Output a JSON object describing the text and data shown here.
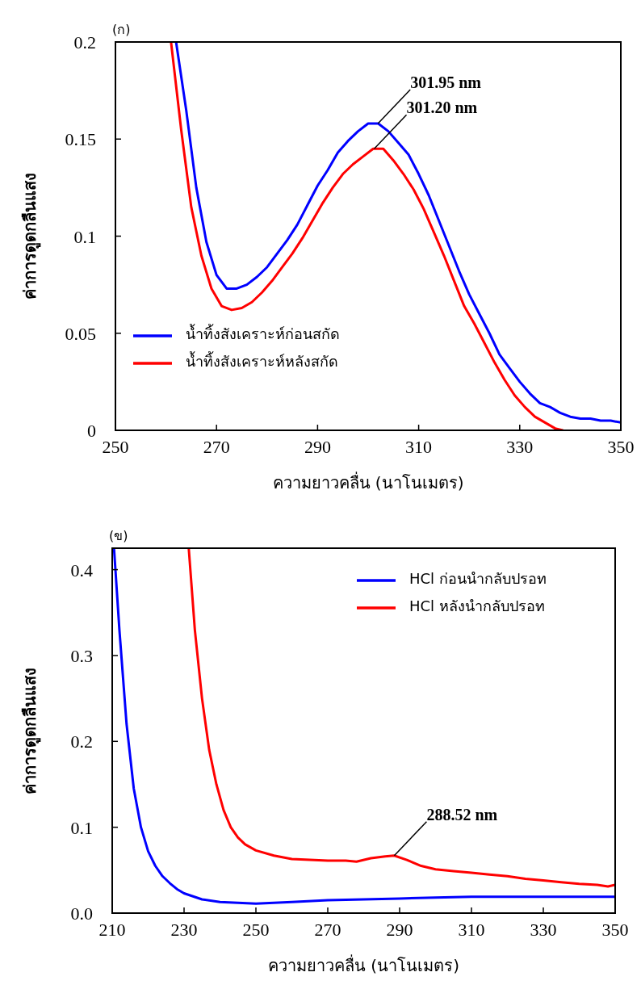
{
  "chart_data": [
    {
      "type": "line",
      "title": "(ก)",
      "xlabel": "ความยาวคลื่น (นาโนเมตร)",
      "ylabel": "ค่าการดูดกลืนแสง",
      "xlim": [
        250,
        350
      ],
      "ylim": [
        0,
        0.2
      ],
      "xticks": [
        250,
        270,
        290,
        310,
        330,
        350
      ],
      "yticks": [
        0,
        0.05,
        0.1,
        0.15,
        0.2
      ],
      "grid": false,
      "legend": "bottom left",
      "series": [
        {
          "name": "น้ำทิ้งสังเคราะห์ก่อนสกัด",
          "color": "#0000ff",
          "x": [
            262,
            264,
            266,
            268,
            270,
            272,
            274,
            276,
            278,
            280,
            282,
            284,
            286,
            288,
            290,
            292,
            294,
            296,
            298,
            300,
            302,
            304,
            306,
            308,
            310,
            312,
            314,
            316,
            318,
            320,
            322,
            324,
            326,
            328,
            330,
            332,
            334,
            336,
            338,
            340,
            342,
            344,
            346,
            348,
            350
          ],
          "values": [
            0.2,
            0.165,
            0.125,
            0.097,
            0.08,
            0.073,
            0.073,
            0.075,
            0.079,
            0.084,
            0.091,
            0.098,
            0.106,
            0.116,
            0.126,
            0.134,
            0.143,
            0.149,
            0.154,
            0.158,
            0.158,
            0.154,
            0.148,
            0.142,
            0.132,
            0.121,
            0.108,
            0.095,
            0.082,
            0.07,
            0.06,
            0.05,
            0.039,
            0.032,
            0.025,
            0.019,
            0.014,
            0.012,
            0.009,
            0.007,
            0.006,
            0.006,
            0.005,
            0.005,
            0.004
          ]
        },
        {
          "name": "น้ำทิ้งสังเคราะห์หลังสกัด",
          "color": "#ff0000",
          "x": [
            261,
            263,
            265,
            267,
            269,
            271,
            273,
            275,
            277,
            279,
            281,
            283,
            285,
            287,
            289,
            291,
            293,
            295,
            297,
            299,
            301,
            303,
            305,
            307,
            309,
            311,
            313,
            315,
            317,
            319,
            321,
            323,
            325,
            327,
            329,
            331,
            333,
            335,
            337,
            338.5
          ],
          "values": [
            0.2,
            0.155,
            0.115,
            0.09,
            0.073,
            0.064,
            0.062,
            0.063,
            0.066,
            0.071,
            0.077,
            0.084,
            0.091,
            0.099,
            0.108,
            0.117,
            0.125,
            0.132,
            0.137,
            0.141,
            0.145,
            0.145,
            0.139,
            0.132,
            0.124,
            0.114,
            0.102,
            0.09,
            0.077,
            0.064,
            0.055,
            0.045,
            0.035,
            0.026,
            0.018,
            0.012,
            0.007,
            0.004,
            0.001,
            0
          ]
        }
      ],
      "annotations": [
        {
          "text": "301.95 nm",
          "x": 301.95,
          "y": 0.158
        },
        {
          "text": "301.20 nm",
          "x": 301.2,
          "y": 0.145
        }
      ]
    },
    {
      "type": "line",
      "title": "(ข)",
      "xlabel": "ความยาวคลื่น (นาโนเมตร)",
      "ylabel": "ค่าการดูดกลืนแสง",
      "xlim": [
        210,
        350
      ],
      "ylim": [
        0,
        0.425
      ],
      "xticks": [
        210,
        230,
        250,
        270,
        290,
        310,
        330,
        350
      ],
      "yticks": [
        {
          "value": 0,
          "label": "0.0"
        },
        0.1,
        0.2,
        0.3,
        0.4
      ],
      "grid": false,
      "legend": "top right",
      "series": [
        {
          "name": "HCl ก่อนนำกลับปรอท",
          "color": "#0000ff",
          "x": [
            210.5,
            212,
            214,
            216,
            218,
            220,
            222,
            224,
            226,
            228,
            230,
            235,
            240,
            245,
            250,
            255,
            260,
            270,
            280,
            290,
            300,
            310,
            320,
            330,
            340,
            350
          ],
          "values": [
            0.425,
            0.33,
            0.22,
            0.145,
            0.1,
            0.072,
            0.055,
            0.043,
            0.035,
            0.028,
            0.023,
            0.016,
            0.013,
            0.012,
            0.011,
            0.012,
            0.013,
            0.015,
            0.016,
            0.017,
            0.018,
            0.019,
            0.019,
            0.019,
            0.019,
            0.019
          ]
        },
        {
          "name": "HCl หลังนำกลับปรอท",
          "color": "#ff0000",
          "x": [
            231.3,
            233,
            235,
            237,
            239,
            241,
            243,
            245,
            247,
            250,
            255,
            260,
            265,
            270,
            275,
            278,
            282,
            286,
            288.5,
            292,
            296,
            300,
            305,
            310,
            315,
            320,
            325,
            330,
            335,
            340,
            345,
            348,
            350
          ],
          "values": [
            0.425,
            0.33,
            0.25,
            0.19,
            0.15,
            0.12,
            0.1,
            0.088,
            0.08,
            0.073,
            0.067,
            0.063,
            0.062,
            0.061,
            0.061,
            0.06,
            0.064,
            0.066,
            0.067,
            0.062,
            0.055,
            0.051,
            0.049,
            0.047,
            0.045,
            0.043,
            0.04,
            0.038,
            0.036,
            0.034,
            0.033,
            0.031,
            0.033
          ]
        }
      ],
      "annotations": [
        {
          "text": "288.52 nm",
          "x": 288.52,
          "y": 0.067
        }
      ]
    }
  ]
}
